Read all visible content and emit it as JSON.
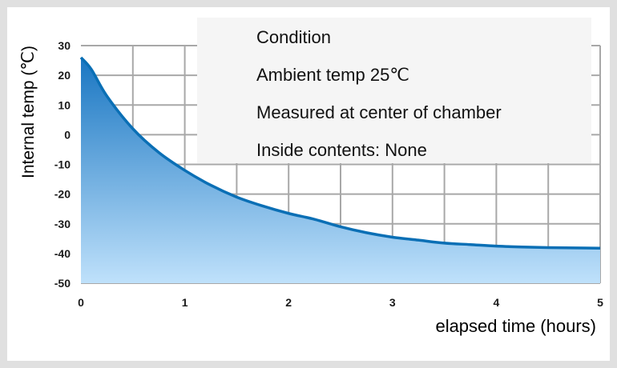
{
  "chart_data": {
    "type": "area",
    "ylabel": "Internal temp (℃)",
    "xlabel": "elapsed time (hours)",
    "xlim": [
      0,
      5
    ],
    "ylim": [
      -50,
      30
    ],
    "xticks": [
      "0",
      "1",
      "2",
      "3",
      "4",
      "5"
    ],
    "yticks": [
      "30",
      "20",
      "10",
      "0",
      "-10",
      "-20",
      "-30",
      "-40",
      "-50"
    ],
    "grid": true,
    "series": [
      {
        "x": [
          0,
          0.1,
          0.25,
          0.5,
          0.75,
          1,
          1.25,
          1.5,
          1.75,
          2,
          2.25,
          2.5,
          2.75,
          3,
          3.25,
          3.5,
          3.75,
          4,
          4.25,
          4.5,
          4.75,
          5
        ],
        "y": [
          26,
          22,
          13,
          2,
          -6,
          -12,
          -17,
          -21,
          -24,
          -26.5,
          -28.5,
          -31,
          -33,
          -34.5,
          -35.5,
          -36.5,
          -37,
          -37.5,
          -37.8,
          -38,
          -38.1,
          -38.2
        ]
      }
    ],
    "annotation_lines": [
      "Condition",
      "Ambient temp 25℃",
      "Measured at center of chamber",
      "Inside contents: None"
    ],
    "colors": {
      "line": "#0a6fb5",
      "fill_top": "#1976c2",
      "fill_bottom": "#bfe1fb",
      "grid": "#a8a8a8",
      "frame": "#e0e0e0",
      "annotation_bg": "#f5f5f5"
    }
  }
}
